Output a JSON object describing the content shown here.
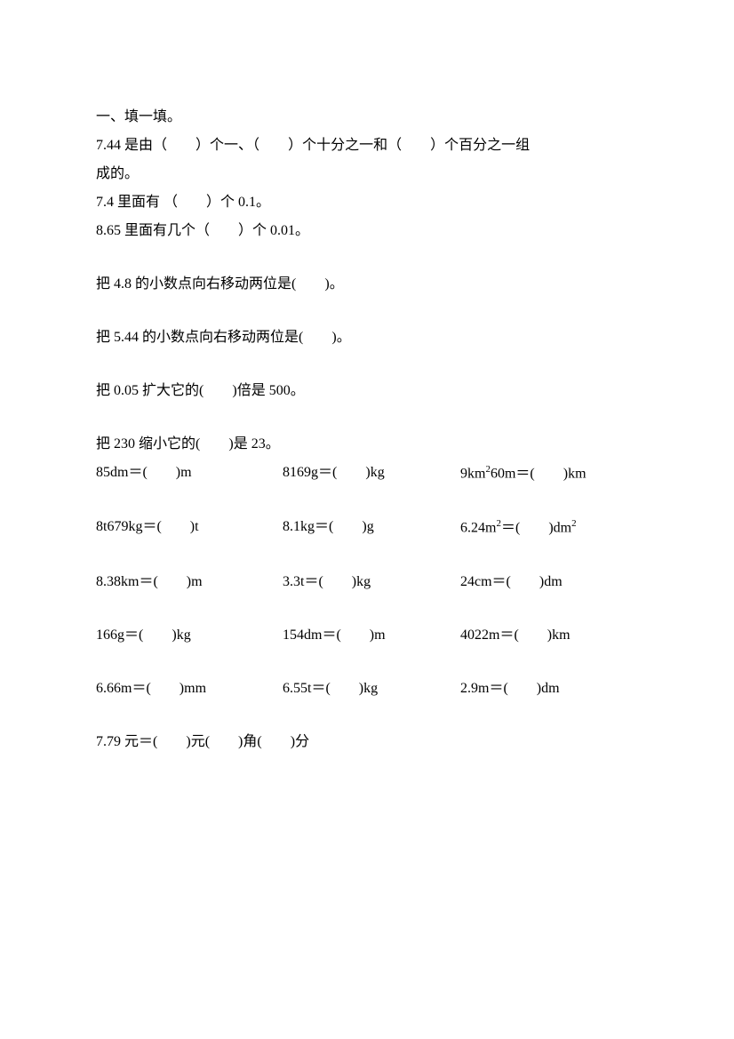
{
  "section_title": "一、填一填。",
  "q1_line1_p1": "7.44 是由（",
  "q1_line1_p2": "）个一、（",
  "q1_line1_p3": "）个十分之一和（",
  "q1_line1_p4": "）个百分之一组",
  "q1_line2": "成的。",
  "q2_p1": "7.4 里面有 （",
  "q2_p2": "）个 0.1。",
  "q3_p1": "8.65 里面有几个（",
  "q3_p2": "）个 0.01。",
  "q4_p1": "把 4.8 的小数点向右移动两位是(",
  "q4_p2": ")。",
  "q5_p1": "把 5.44 的小数点向右移动两位是(",
  "q5_p2": ")。",
  "q6_p1": "把 0.05 扩大它的(",
  "q6_p2": ")倍是 500。",
  "q7_p1": "把 230 缩小它的(",
  "q7_p2": ")是 23。",
  "r1c1_p1": "85dm＝(",
  "r1c1_p2": ")m",
  "r1c2_p1": "8169g＝(",
  "r1c2_p2": ")kg",
  "r1c3_p1": "9km",
  "r1c3_sup": "2",
  "r1c3_p2": "60m＝(",
  "r1c3_p3": ")km",
  "r2c1_p1": "8t679kg＝(",
  "r2c1_p2": ")t",
  "r2c2_p1": "8.1kg＝(",
  "r2c2_p2": ")g",
  "r2c3_p1": "6.24m",
  "r2c3_sup1": "2",
  "r2c3_p2": "＝(",
  "r2c3_p3": ")dm",
  "r2c3_sup2": "2",
  "r3c1_p1": "8.38km＝(",
  "r3c1_p2": ")m",
  "r3c2_p1": "3.3t＝(",
  "r3c2_p2": ")kg",
  "r3c3_p1": "24cm＝(",
  "r3c3_p2": ")dm",
  "r4c1_p1": "166g＝(",
  "r4c1_p2": ")kg",
  "r4c2_p1": "154dm＝(",
  "r4c2_p2": ")m",
  "r4c3_p1": "4022m＝(",
  "r4c3_p2": ")km",
  "r5c1_p1": "6.66m＝(",
  "r5c1_p2": ")mm",
  "r5c2_p1": "6.55t＝(",
  "r5c2_p2": ")kg",
  "r5c3_p1": "2.9m＝(",
  "r5c3_p2": ")dm",
  "q_last_p1": "7.79 元＝(",
  "q_last_p2": ")元(",
  "q_last_p3": ")角(",
  "q_last_p4": ")分",
  "blank_wide": "　　",
  "blank_med": "　　",
  "blank_sm": "　　"
}
